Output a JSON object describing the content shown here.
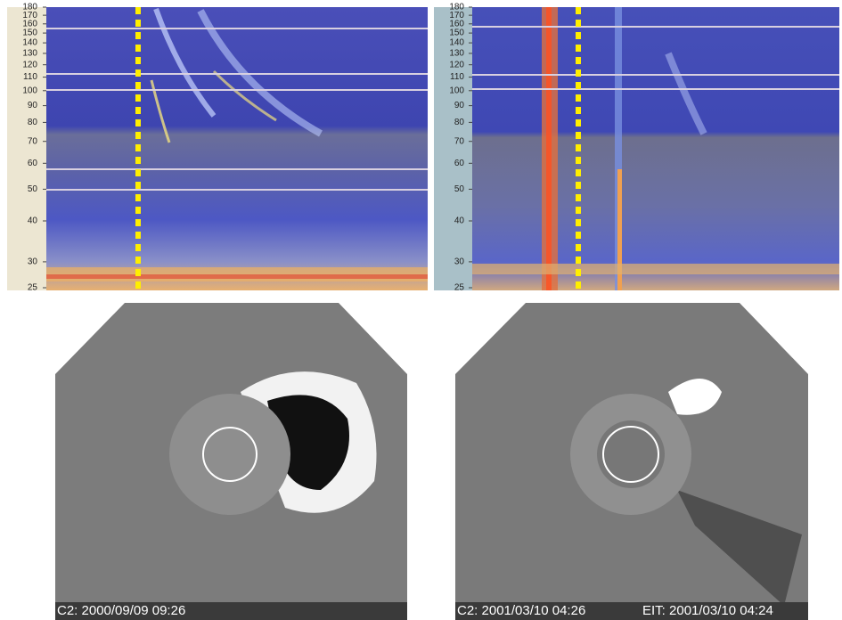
{
  "chart_data": [
    {
      "type": "spectrogram",
      "scale": "log",
      "ylim": [
        25,
        180
      ],
      "yticks": [
        180,
        170,
        160,
        150,
        140,
        130,
        120,
        110,
        100,
        90,
        80,
        70,
        60,
        50,
        40,
        30,
        25
      ]
    },
    {
      "type": "spectrogram",
      "scale": "log",
      "ylim": [
        25,
        180
      ],
      "yticks": [
        180,
        170,
        160,
        150,
        140,
        130,
        120,
        110,
        100,
        90,
        80,
        70,
        60,
        50,
        40,
        30,
        25
      ]
    }
  ],
  "images": [
    {
      "captions": [
        "C2: 2000/09/09 09:26"
      ]
    },
    {
      "captions": [
        "C2: 2001/03/10 04:26",
        "EIT: 2001/03/10 04:24"
      ]
    }
  ]
}
